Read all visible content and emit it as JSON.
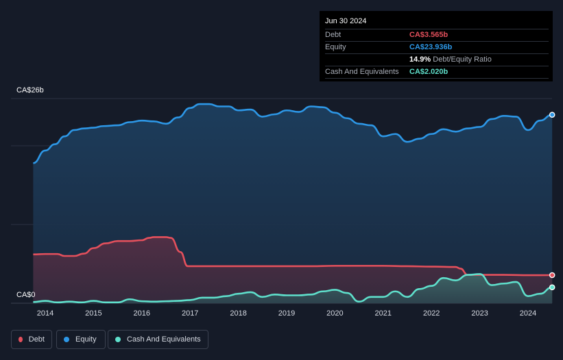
{
  "chart_data": {
    "type": "area",
    "y_top_label": "CA$26b",
    "y_bottom_label": "CA$0",
    "ylim": [
      0,
      26
    ],
    "xlim": [
      2013.7,
      2024.5
    ],
    "x_ticks": [
      "2014",
      "2015",
      "2016",
      "2017",
      "2018",
      "2019",
      "2020",
      "2021",
      "2022",
      "2023",
      "2024"
    ],
    "grid": true,
    "legend_position": "bottom-left",
    "series": [
      {
        "name": "Debt",
        "color": "#e4505c",
        "x": [
          2013.75,
          2014.0,
          2014.25,
          2014.4,
          2014.6,
          2014.8,
          2015.0,
          2015.25,
          2015.5,
          2015.75,
          2016.0,
          2016.15,
          2016.25,
          2016.5,
          2016.6,
          2016.8,
          2016.95,
          2017.5,
          2018.0,
          2019.0,
          2019.5,
          2020.0,
          2020.5,
          2021.0,
          2021.5,
          2022.0,
          2022.5,
          2022.6,
          2022.75,
          2023.0,
          2023.5,
          2024.0,
          2024.5
        ],
        "y": [
          6.2,
          6.25,
          6.25,
          6.0,
          6.0,
          6.3,
          7.0,
          7.6,
          7.9,
          7.9,
          8.0,
          8.3,
          8.4,
          8.4,
          8.3,
          6.5,
          4.7,
          4.7,
          4.7,
          4.7,
          4.7,
          4.75,
          4.75,
          4.75,
          4.7,
          4.65,
          4.6,
          4.4,
          3.6,
          3.6,
          3.6,
          3.56,
          3.565
        ]
      },
      {
        "name": "Equity",
        "color": "#2d97e6",
        "x": [
          2013.75,
          2014.0,
          2014.2,
          2014.4,
          2014.6,
          2014.8,
          2015.0,
          2015.2,
          2015.5,
          2015.75,
          2016.0,
          2016.25,
          2016.5,
          2016.75,
          2017.0,
          2017.2,
          2017.4,
          2017.6,
          2017.8,
          2018.0,
          2018.25,
          2018.5,
          2018.75,
          2019.0,
          2019.25,
          2019.5,
          2019.75,
          2020.0,
          2020.25,
          2020.5,
          2020.75,
          2021.0,
          2021.25,
          2021.5,
          2021.75,
          2022.0,
          2022.25,
          2022.5,
          2022.75,
          2023.0,
          2023.25,
          2023.5,
          2023.75,
          2024.0,
          2024.25,
          2024.5
        ],
        "y": [
          17.8,
          19.4,
          20.2,
          21.2,
          22.0,
          22.2,
          22.3,
          22.5,
          22.6,
          23.0,
          23.2,
          23.1,
          22.8,
          23.6,
          24.8,
          25.3,
          25.3,
          25.0,
          25.0,
          24.5,
          24.6,
          23.7,
          24.0,
          24.5,
          24.3,
          25.0,
          24.9,
          24.2,
          23.5,
          22.8,
          22.6,
          21.2,
          21.5,
          20.5,
          20.9,
          21.5,
          22.1,
          21.8,
          22.2,
          22.4,
          23.4,
          23.8,
          23.7,
          22.0,
          23.2,
          23.936
        ]
      },
      {
        "name": "Cash And Equivalents",
        "color": "#5fe0cc",
        "x": [
          2013.75,
          2014.0,
          2014.25,
          2014.5,
          2014.75,
          2015.0,
          2015.25,
          2015.5,
          2015.75,
          2016.0,
          2016.25,
          2016.5,
          2016.75,
          2017.0,
          2017.25,
          2017.5,
          2017.75,
          2018.0,
          2018.25,
          2018.5,
          2018.75,
          2019.0,
          2019.25,
          2019.5,
          2019.75,
          2020.0,
          2020.25,
          2020.5,
          2020.75,
          2021.0,
          2021.25,
          2021.5,
          2021.75,
          2022.0,
          2022.25,
          2022.5,
          2022.75,
          2023.0,
          2023.25,
          2023.5,
          2023.75,
          2024.0,
          2024.25,
          2024.5
        ],
        "y": [
          0.15,
          0.3,
          0.1,
          0.2,
          0.1,
          0.3,
          0.1,
          0.1,
          0.5,
          0.25,
          0.2,
          0.25,
          0.3,
          0.4,
          0.7,
          0.7,
          0.9,
          1.2,
          1.4,
          0.8,
          1.1,
          1.0,
          1.0,
          1.1,
          1.5,
          1.7,
          1.3,
          0.2,
          0.8,
          0.8,
          1.5,
          0.8,
          1.8,
          2.2,
          3.2,
          2.9,
          3.6,
          3.7,
          2.3,
          2.5,
          2.7,
          0.9,
          1.2,
          2.02
        ]
      }
    ]
  },
  "tooltip": {
    "date": "Jun 30 2024",
    "rows": [
      {
        "label": "Debt",
        "value": "CA$3.565b",
        "color": "#e4505c"
      },
      {
        "label": "Equity",
        "value": "CA$23.936b",
        "color": "#2d97e6"
      },
      {
        "label": "",
        "value": "14.9%",
        "sub": "Debt/Equity Ratio",
        "color": "#ffffff"
      },
      {
        "label": "Cash And Equivalents",
        "value": "CA$2.020b",
        "color": "#5fe0cc"
      }
    ]
  },
  "legend": [
    {
      "label": "Debt",
      "color": "#e4505c"
    },
    {
      "label": "Equity",
      "color": "#2d97e6"
    },
    {
      "label": "Cash And Equivalents",
      "color": "#5fe0cc"
    }
  ]
}
